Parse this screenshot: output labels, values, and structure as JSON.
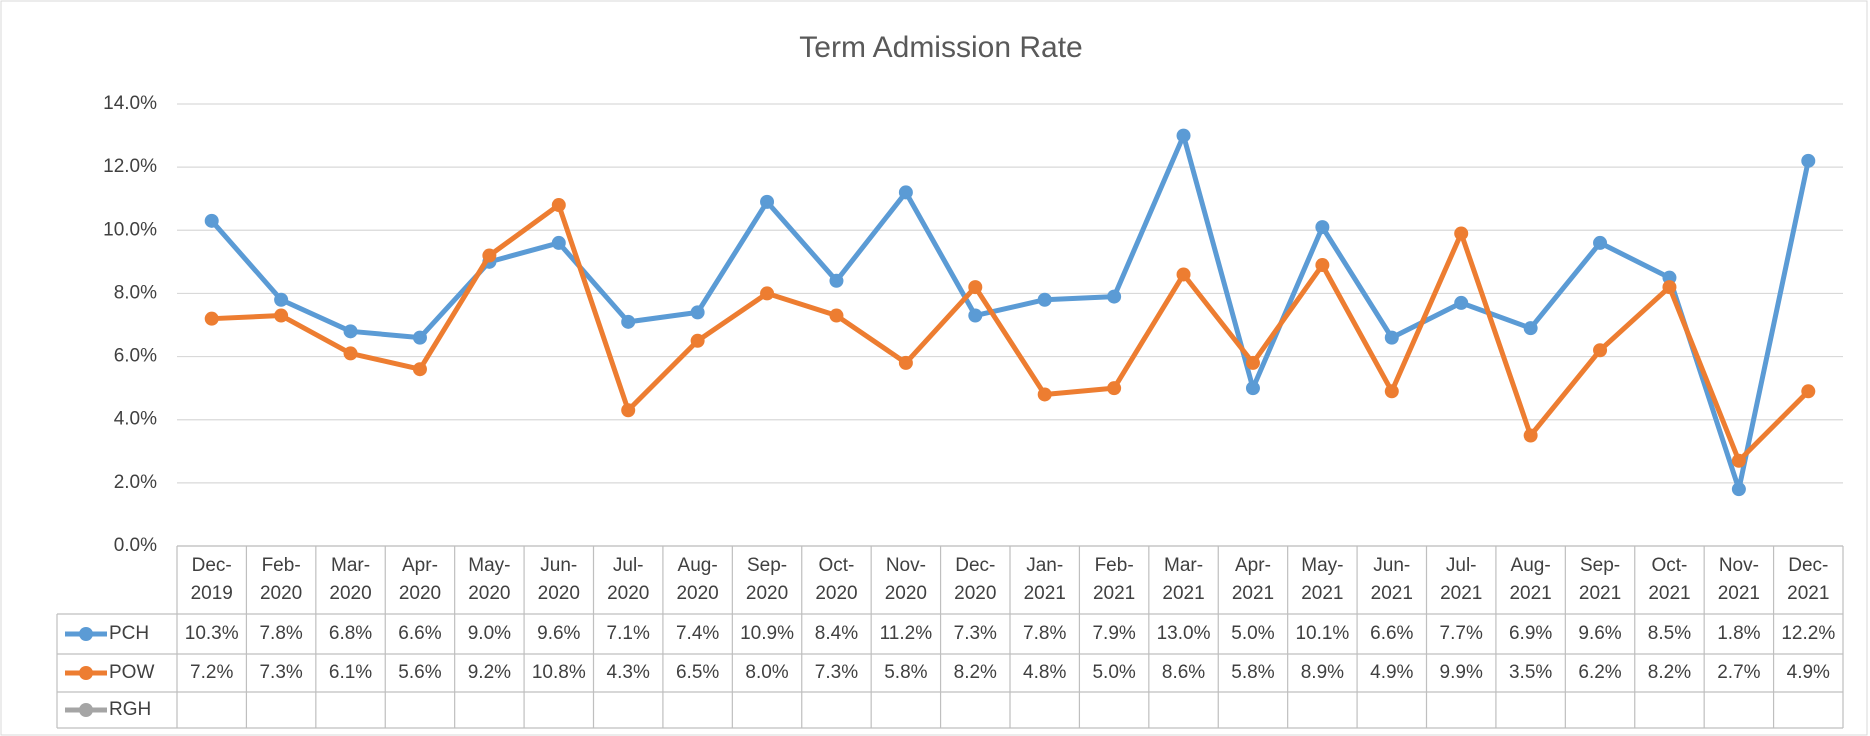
{
  "chart_data": {
    "type": "line",
    "title": "Term Admission Rate",
    "categories": [
      "Dec-2019",
      "Feb-2020",
      "Mar-2020",
      "Apr-2020",
      "May-2020",
      "Jun-2020",
      "Jul-2020",
      "Aug-2020",
      "Sep-2020",
      "Oct-2020",
      "Nov-2020",
      "Dec-2020",
      "Jan-2021",
      "Feb-2021",
      "Mar-2021",
      "Apr-2021",
      "May-2021",
      "Jun-2021",
      "Jul-2021",
      "Aug-2021",
      "Sep-2021",
      "Oct-2021",
      "Nov-2021",
      "Dec-2021"
    ],
    "series": [
      {
        "name": "PCH",
        "color": "#5b9bd5",
        "values": [
          10.3,
          7.8,
          6.8,
          6.6,
          9.0,
          9.6,
          7.1,
          7.4,
          10.9,
          8.4,
          11.2,
          7.3,
          7.8,
          7.9,
          13.0,
          5.0,
          10.1,
          6.6,
          7.7,
          6.9,
          9.6,
          8.5,
          1.8,
          12.2
        ],
        "value_labels": [
          "10.3%",
          "7.8%",
          "6.8%",
          "6.6%",
          "9.0%",
          "9.6%",
          "7.1%",
          "7.4%",
          "10.9%",
          "8.4%",
          "11.2%",
          "7.3%",
          "7.8%",
          "7.9%",
          "13.0%",
          "5.0%",
          "10.1%",
          "6.6%",
          "7.7%",
          "6.9%",
          "9.6%",
          "8.5%",
          "1.8%",
          "12.2%"
        ]
      },
      {
        "name": "POW",
        "color": "#ed7d31",
        "values": [
          7.2,
          7.3,
          6.1,
          5.6,
          9.2,
          10.8,
          4.3,
          6.5,
          8.0,
          7.3,
          5.8,
          8.2,
          4.8,
          5.0,
          8.6,
          5.8,
          8.9,
          4.9,
          9.9,
          3.5,
          6.2,
          8.2,
          2.7,
          4.9
        ],
        "value_labels": [
          "7.2%",
          "7.3%",
          "6.1%",
          "5.6%",
          "9.2%",
          "10.8%",
          "4.3%",
          "6.5%",
          "8.0%",
          "7.3%",
          "5.8%",
          "8.2%",
          "4.8%",
          "5.0%",
          "8.6%",
          "5.8%",
          "8.9%",
          "4.9%",
          "9.9%",
          "3.5%",
          "6.2%",
          "8.2%",
          "2.7%",
          "4.9%"
        ]
      },
      {
        "name": "RGH",
        "color": "#a5a5a5",
        "values": [
          null,
          null,
          null,
          null,
          null,
          null,
          null,
          null,
          null,
          null,
          null,
          null,
          null,
          null,
          null,
          null,
          null,
          null,
          null,
          null,
          null,
          null,
          null,
          null
        ]
      }
    ],
    "ylim": [
      0,
      14
    ],
    "yticks": [
      {
        "value": 0,
        "label": "0.0%"
      },
      {
        "value": 2,
        "label": "2.0%"
      },
      {
        "value": 4,
        "label": "4.0%"
      },
      {
        "value": 6,
        "label": "6.0%"
      },
      {
        "value": 8,
        "label": "8.0%"
      },
      {
        "value": 10,
        "label": "10.0%"
      },
      {
        "value": 12,
        "label": "12.0%"
      },
      {
        "value": 14,
        "label": "14.0%"
      }
    ],
    "grid": true
  }
}
